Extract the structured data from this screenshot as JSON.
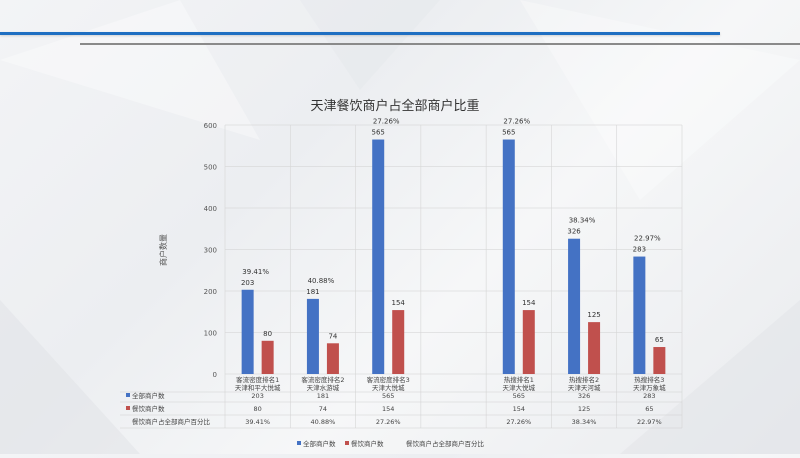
{
  "chart_data": {
    "type": "bar",
    "title": "天津餐饮商户占全部商户比重",
    "ylabel": "商户数量",
    "xlabel": "",
    "ylim": [
      0,
      600
    ],
    "yticks": [
      0,
      100,
      200,
      300,
      400,
      500,
      600
    ],
    "grid": true,
    "legend_position": "bottom",
    "categories": [
      {
        "line1": "客流密度排名1",
        "line2": "天津和平大悦城"
      },
      {
        "line1": "客流密度排名2",
        "line2": "天津水游城"
      },
      {
        "line1": "客流密度排名3",
        "line2": "天津大悦城"
      },
      {
        "line1": "",
        "line2": ""
      },
      {
        "line1": "热搜排名1",
        "line2": "天津大悦城"
      },
      {
        "line1": "热搜排名2",
        "line2": "天津天河城"
      },
      {
        "line1": "热搜排名3",
        "line2": "天津万象城"
      }
    ],
    "series": [
      {
        "name": "全部商户数",
        "color": "#4472c4",
        "values": [
          203,
          181,
          565,
          null,
          565,
          326,
          283
        ],
        "labels": [
          "203",
          "181",
          "565",
          "",
          "565",
          "326",
          "283"
        ]
      },
      {
        "name": "餐饮商户数",
        "color": "#c0504d",
        "values": [
          80,
          74,
          154,
          null,
          154,
          125,
          65
        ],
        "labels": [
          "80",
          "74",
          "154",
          "",
          "154",
          "125",
          "65"
        ]
      },
      {
        "name": "餐饮商户占全部商户百分比",
        "color": "none",
        "values": [
          39.41,
          40.88,
          27.26,
          null,
          27.26,
          38.34,
          22.97
        ],
        "labels": [
          "39.41%",
          "40.88%",
          "27.26%",
          "",
          "27.26%",
          "38.34%",
          "22.97%"
        ]
      }
    ]
  }
}
